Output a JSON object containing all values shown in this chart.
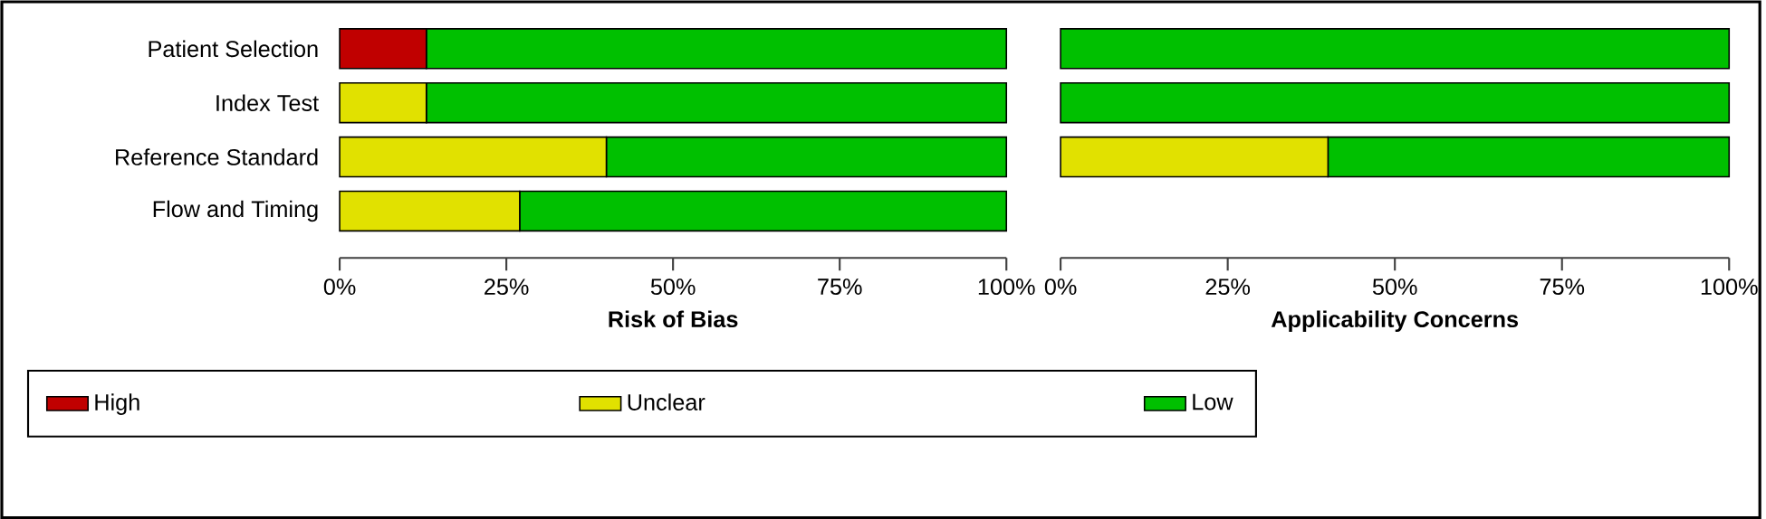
{
  "chart_data": [
    {
      "type": "bar",
      "orientation": "horizontal",
      "stacked": true,
      "xlabel": "Risk of Bias",
      "categories": [
        "Patient Selection",
        "Index Test",
        "Reference Standard",
        "Flow and Timing"
      ],
      "series": [
        {
          "name": "High",
          "color": "#c00000",
          "values": [
            13,
            0,
            0,
            0
          ]
        },
        {
          "name": "Unclear",
          "color": "#e1e100",
          "values": [
            0,
            13,
            40,
            27
          ]
        },
        {
          "name": "Low",
          "color": "#00c000",
          "values": [
            87,
            87,
            60,
            73
          ]
        }
      ],
      "xlim": [
        0,
        100
      ],
      "xticks": [
        {
          "value": 0,
          "label": "0%"
        },
        {
          "value": 25,
          "label": "25%"
        },
        {
          "value": 50,
          "label": "50%"
        },
        {
          "value": 75,
          "label": "75%"
        },
        {
          "value": 100,
          "label": "100%"
        }
      ],
      "legend": "bottom"
    },
    {
      "type": "bar",
      "orientation": "horizontal",
      "stacked": true,
      "xlabel": "Applicability Concerns",
      "categories": [
        null,
        null,
        null,
        null
      ],
      "series": [
        {
          "color": "#e1e100",
          "values": [
            0,
            0,
            40,
            null
          ]
        },
        {
          "color": "#00c000",
          "values": [
            100,
            100,
            60,
            null
          ]
        }
      ],
      "xlim": [
        0,
        100
      ],
      "xticks": [
        {
          "value": 0,
          "label": "0%"
        },
        {
          "value": 25,
          "label": "25%"
        },
        {
          "value": 50,
          "label": "50%"
        },
        {
          "value": 75,
          "label": "75%"
        },
        {
          "value": 100,
          "label": "100%"
        }
      ],
      "tick_labels": "x"
    }
  ]
}
